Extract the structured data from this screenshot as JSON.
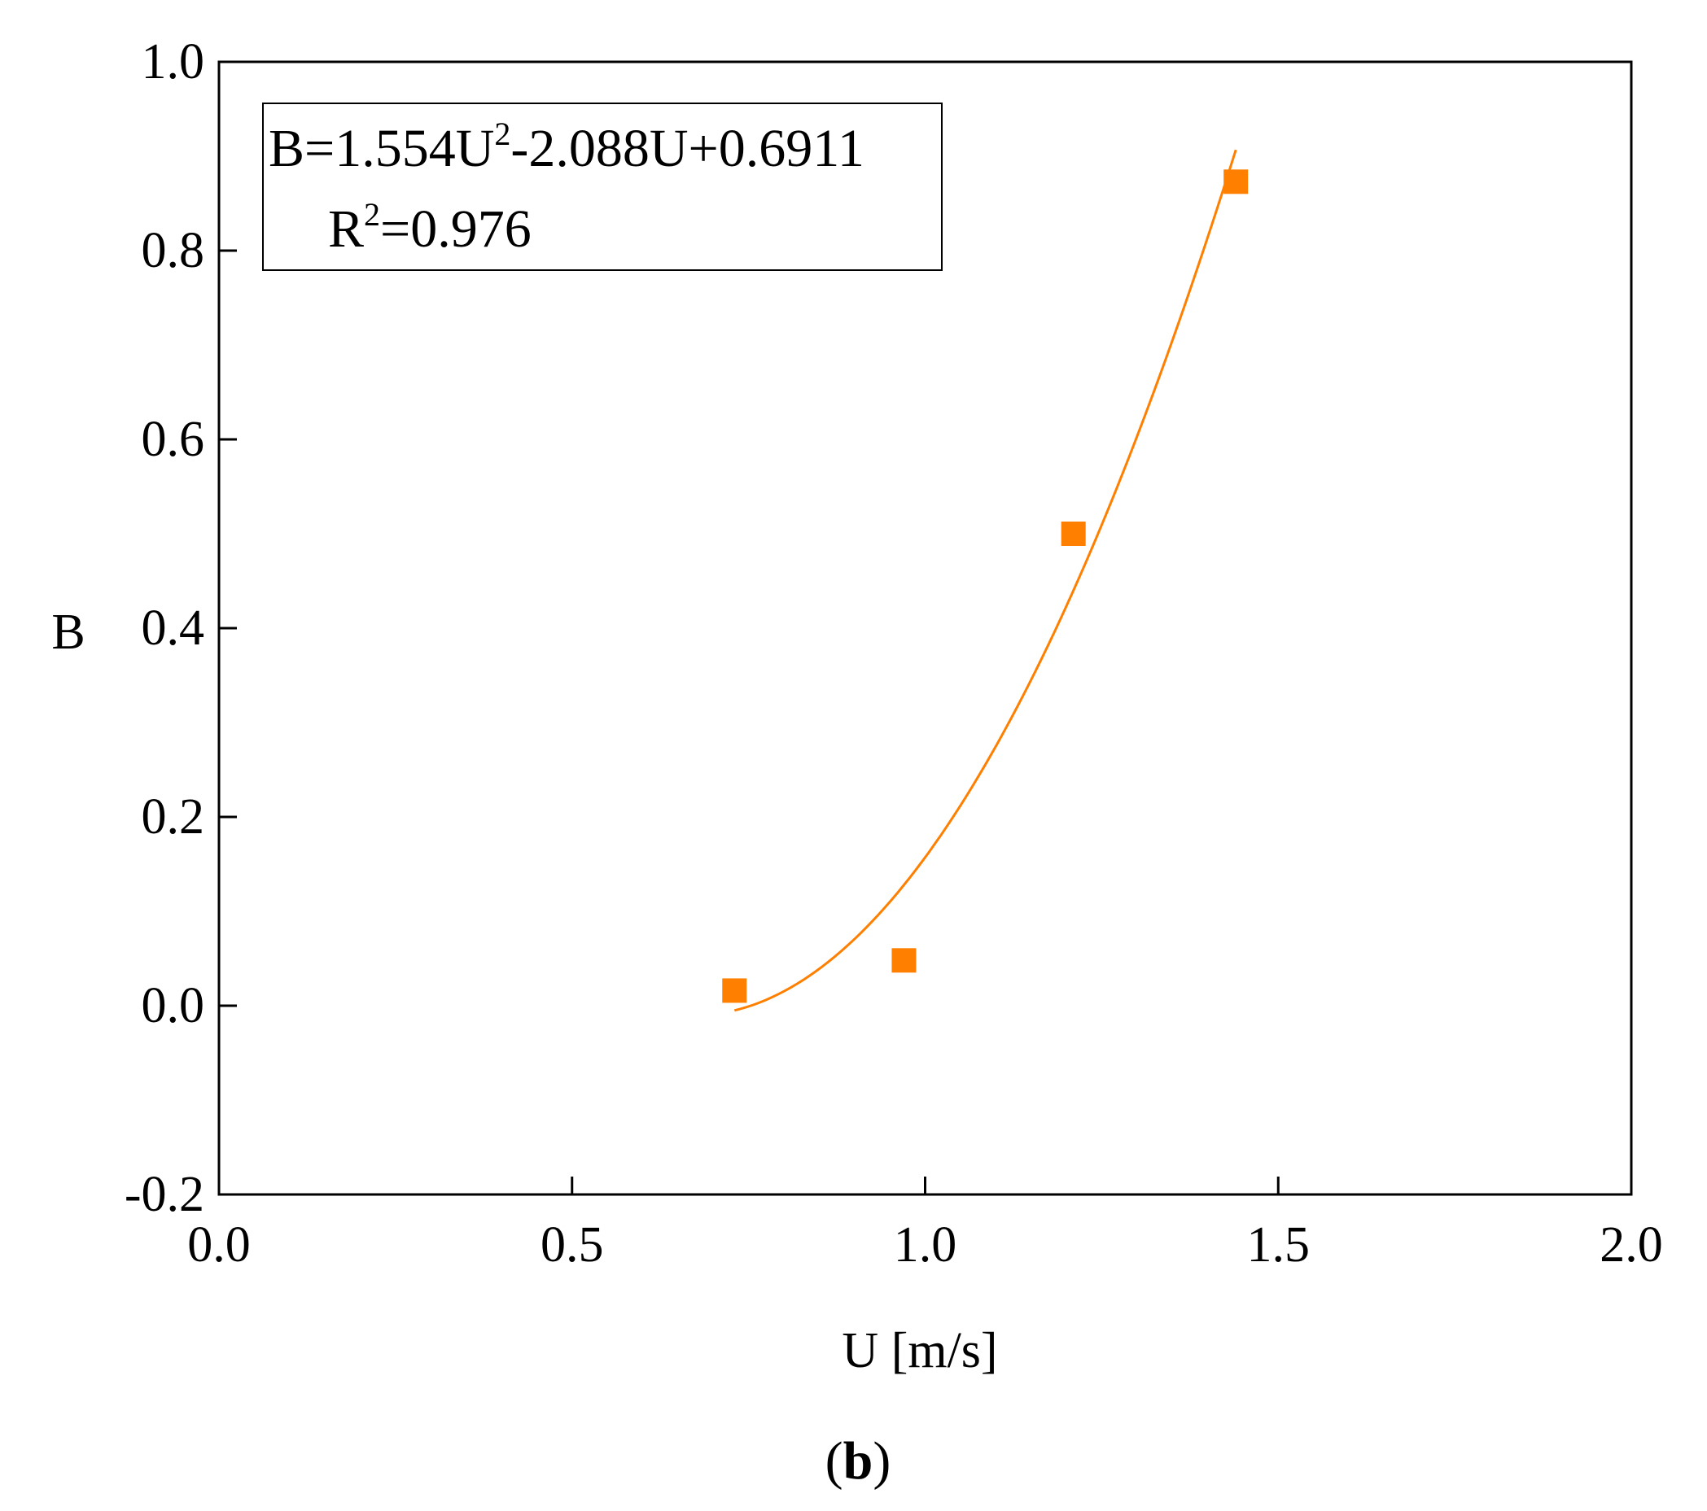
{
  "chart_data": {
    "type": "scatter",
    "title": "",
    "xlabel": "U [m/s]",
    "ylabel": "B",
    "xlim": [
      0.0,
      2.0
    ],
    "ylim": [
      -0.2,
      1.0
    ],
    "x_ticks": [
      "0.0",
      "0.5",
      "1.0",
      "1.5",
      "2.0"
    ],
    "y_ticks": [
      "-0.2",
      "0.0",
      "0.2",
      "0.4",
      "0.6",
      "0.8",
      "1.0"
    ],
    "grid": false,
    "series": [
      {
        "marker": "square",
        "color": "#ff7f00",
        "points": [
          {
            "x": 0.73,
            "y": 0.016
          },
          {
            "x": 0.97,
            "y": 0.048
          },
          {
            "x": 1.21,
            "y": 0.5
          },
          {
            "x": 1.44,
            "y": 0.873
          }
        ]
      }
    ],
    "fit": {
      "type": "polynomial",
      "coefficients": [
        1.554,
        -2.088,
        0.6911
      ],
      "x_range": [
        0.73,
        1.44
      ],
      "color": "#ff7f00"
    },
    "annotation": {
      "equation_parts": [
        "B=1.554U",
        "2",
        "-2.088U+0.6911"
      ],
      "r2_parts": [
        "R",
        "2",
        "=0.976"
      ],
      "position": "top-left"
    },
    "panel_label": {
      "open": "(",
      "letter": "b",
      "close": ")"
    }
  }
}
